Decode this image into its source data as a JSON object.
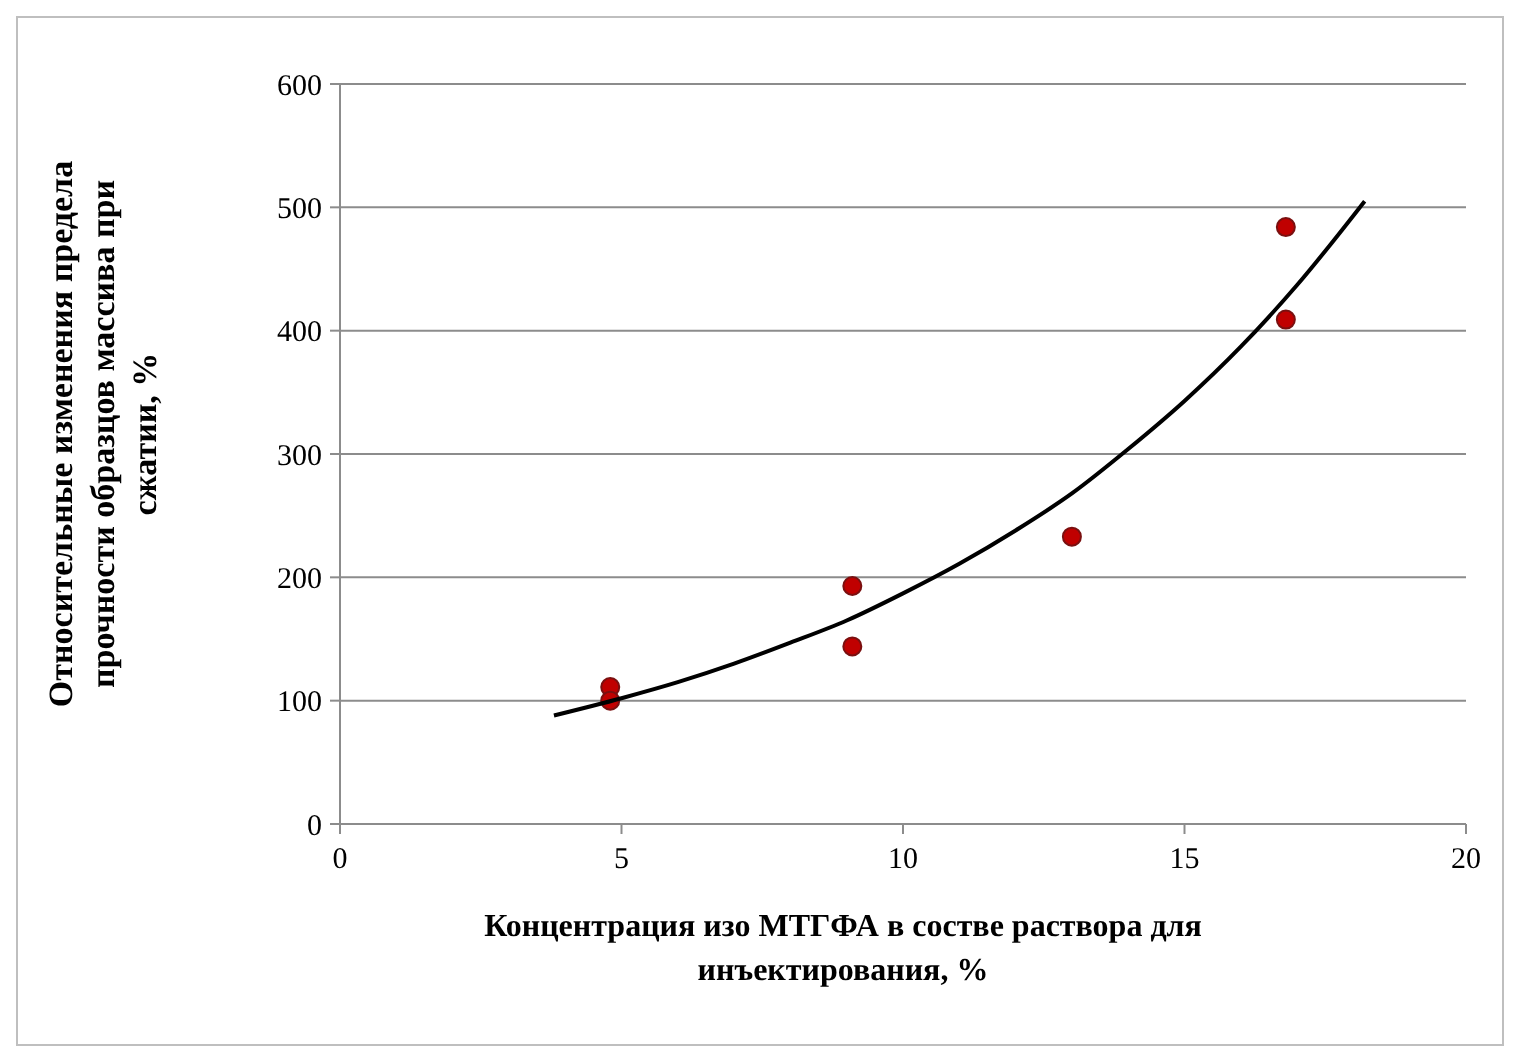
{
  "chart_data": {
    "type": "scatter",
    "xlabel": "Концентрация  изо  МТГФА в состве раствора для\nинъектирования, %",
    "ylabel": "Относительные изменения предела\nпрочности образцов массива при\nсжатии, %",
    "xlim": [
      0,
      20
    ],
    "ylim": [
      0,
      600
    ],
    "xticks": [
      0,
      5,
      10,
      15,
      20
    ],
    "yticks": [
      0,
      100,
      200,
      300,
      400,
      500,
      600
    ],
    "grid": "y",
    "series": [
      {
        "color": "#c00000",
        "marker": "circle",
        "x": [
          4.8,
          4.8,
          9.1,
          9.1,
          13.0,
          16.8,
          16.8
        ],
        "values": [
          111,
          100,
          193,
          144,
          233,
          484,
          409
        ]
      },
      {
        "type": "line",
        "color": "#000000",
        "marker": "none",
        "line_style": "solid",
        "x": [
          3.8,
          5,
          6,
          7,
          8,
          9,
          10,
          11,
          12,
          13,
          14,
          15,
          16,
          17,
          18.2
        ],
        "values": [
          88,
          102,
          115,
          130,
          147,
          165,
          187,
          211,
          238,
          268,
          304,
          343,
          387,
          437,
          505
        ]
      }
    ]
  }
}
